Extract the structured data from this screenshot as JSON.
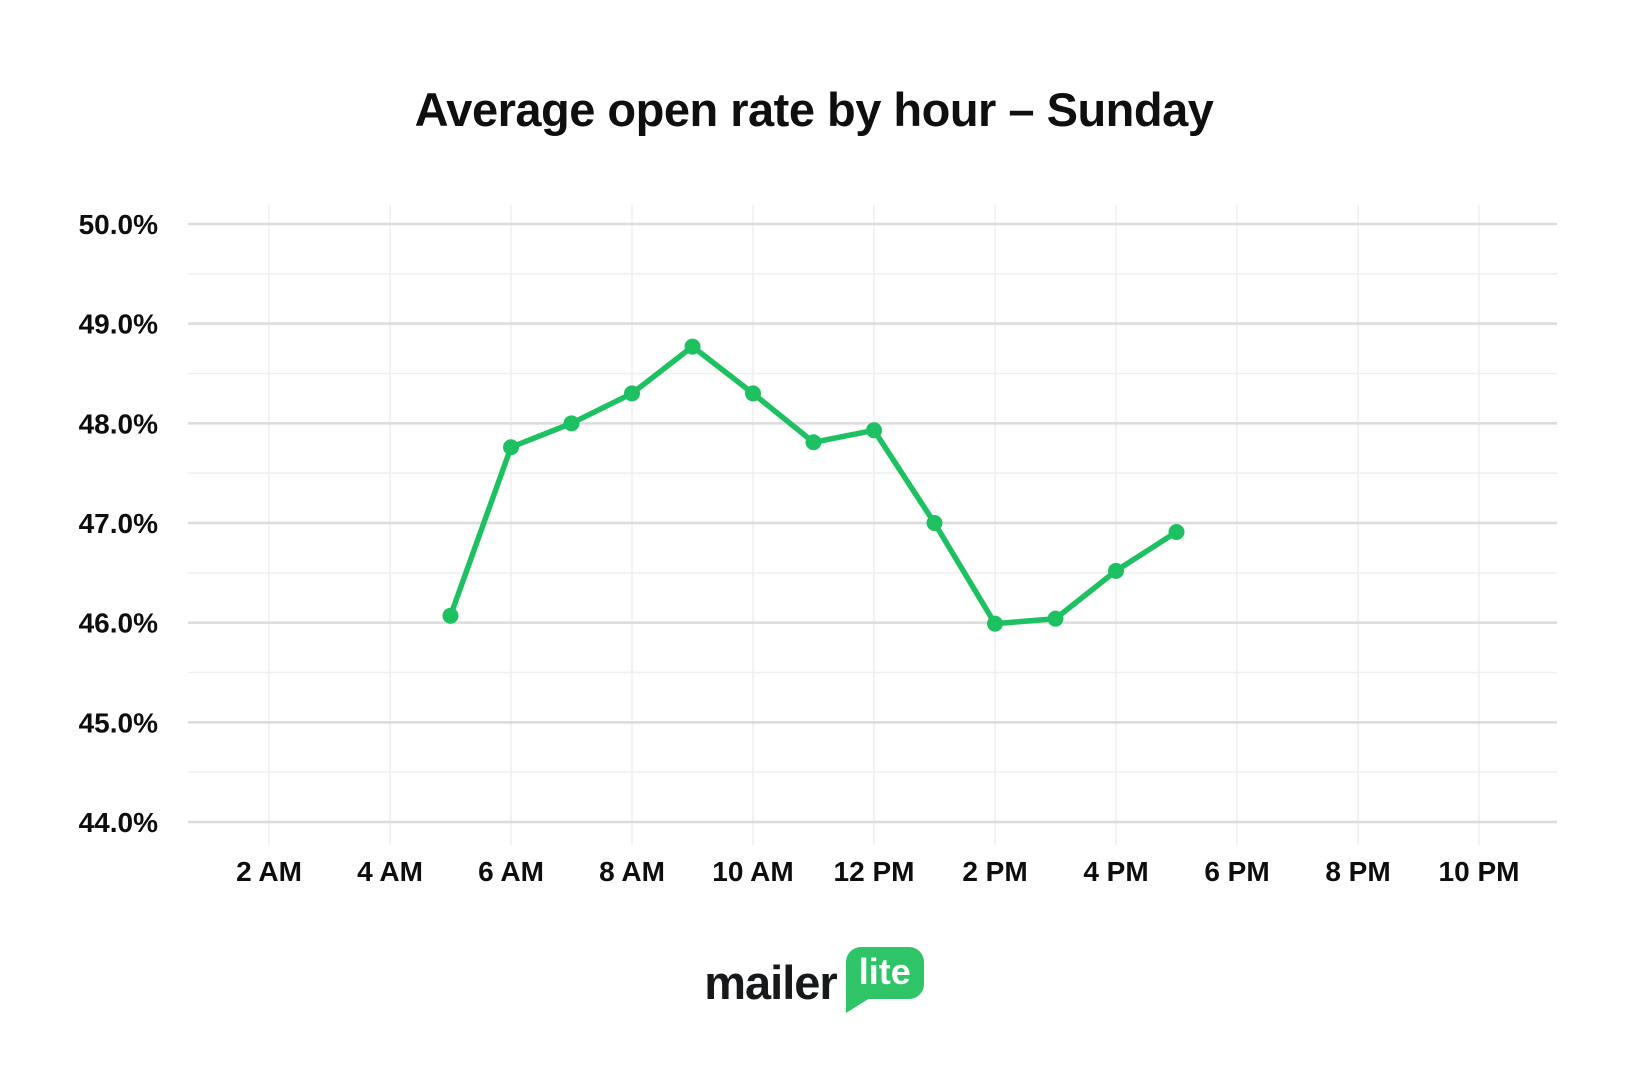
{
  "page": {
    "background": "#ffffff"
  },
  "title": "Average open rate by hour – Sunday",
  "chart_data": {
    "type": "line",
    "title": "Average open rate by hour – Sunday",
    "x_tick_labels": [
      "2 AM",
      "4 AM",
      "6 AM",
      "8 AM",
      "10 AM",
      "12 PM",
      "2 PM",
      "4 PM",
      "6 PM",
      "8 PM",
      "10 PM"
    ],
    "x_tick_hours": [
      2,
      4,
      6,
      8,
      10,
      12,
      14,
      16,
      18,
      20,
      22
    ],
    "y_tick_labels": [
      "50.0%",
      "49.0%",
      "48.0%",
      "47.0%",
      "46.0%",
      "45.0%",
      "44.0%"
    ],
    "ylim": [
      44.0,
      50.0
    ],
    "y_major_step": 1.0,
    "y_minor_step": 0.5,
    "y_unit": "%",
    "grid": {
      "show": true,
      "minor_color": "#efefef",
      "major_color": "#dcdcdc"
    },
    "legend": false,
    "series": [
      {
        "name": "Average open rate",
        "color": "#1ec161",
        "point_labels": [
          "5 AM",
          "6 AM",
          "7 AM",
          "8 AM",
          "9 AM",
          "10 AM",
          "11 AM",
          "12 PM",
          "1 PM",
          "2 PM",
          "3 PM",
          "4 PM",
          "5 PM"
        ],
        "point_hours": [
          5,
          6,
          7,
          8,
          9,
          10,
          11,
          12,
          13,
          14,
          15,
          16,
          17
        ],
        "values": [
          46.07,
          47.76,
          48.0,
          48.3,
          48.77,
          48.3,
          47.81,
          47.93,
          47.0,
          45.99,
          46.04,
          46.52,
          46.91
        ]
      }
    ]
  },
  "logo": {
    "brand": "mailer",
    "bubble_text": "lite",
    "bubble_color": "#2fc468",
    "text_color": "#17181a"
  }
}
